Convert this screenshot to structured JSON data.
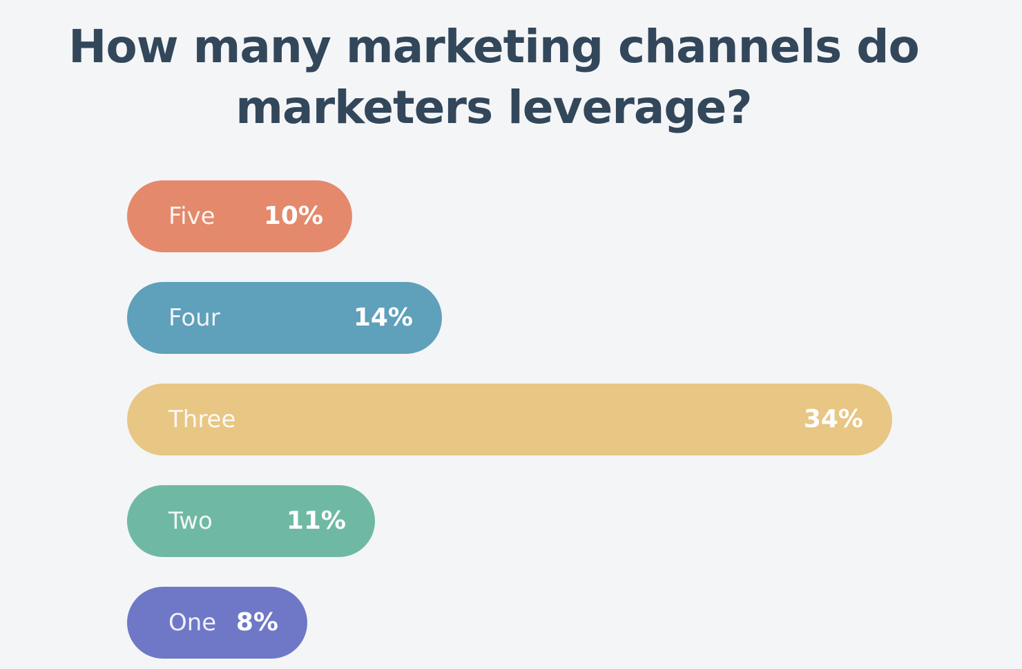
{
  "chart_data": {
    "type": "bar",
    "orientation": "horizontal",
    "title": "How many marketing channels do marketers leverage?",
    "categories": [
      "Five",
      "Four",
      "Three",
      "Two",
      "One"
    ],
    "values": [
      10,
      14,
      34,
      11,
      8
    ],
    "value_labels": [
      "10%",
      "14%",
      "34%",
      "11%",
      "8%"
    ],
    "unit": "%",
    "colors": [
      "#e4896b",
      "#5fa0bb",
      "#e8c684",
      "#6fb9a4",
      "#6f78c7"
    ],
    "grid": false,
    "legend": "none"
  }
}
